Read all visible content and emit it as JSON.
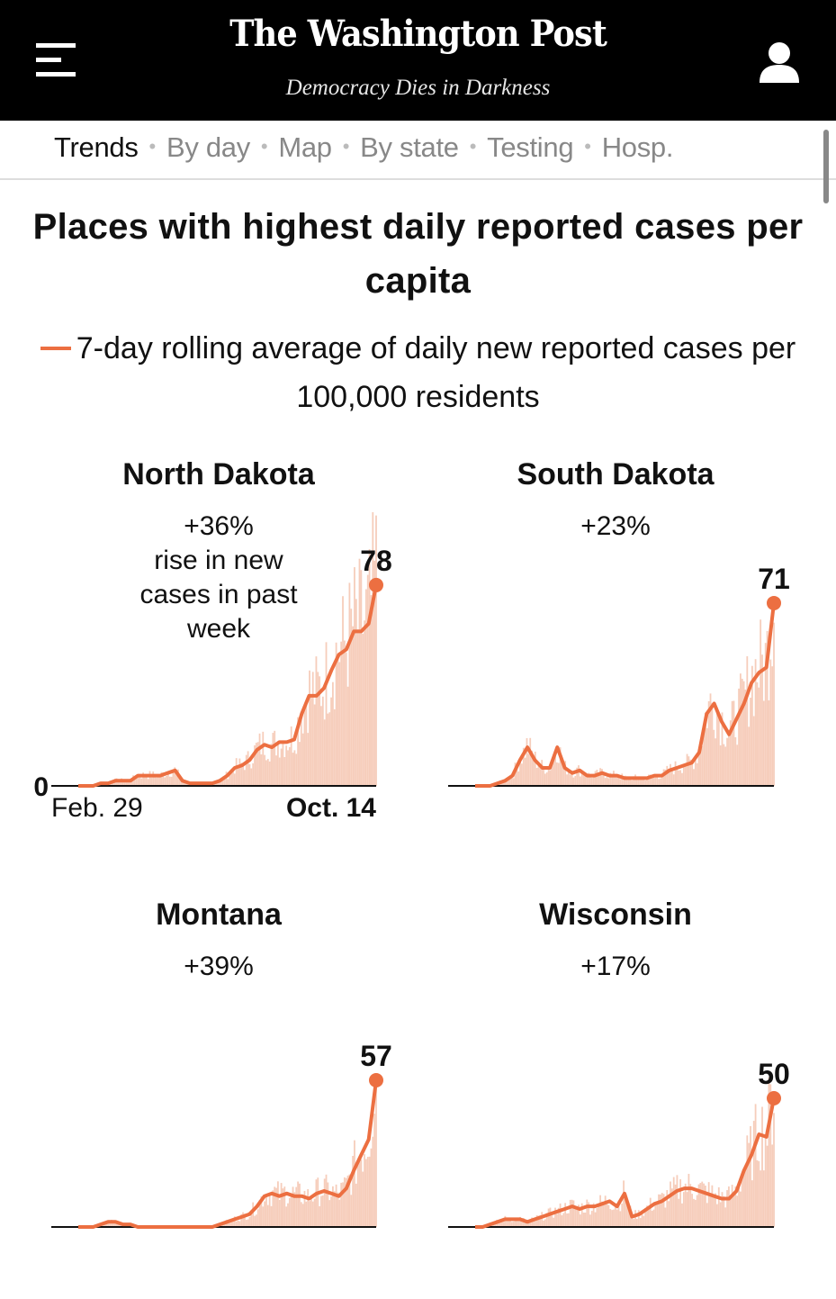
{
  "header": {
    "logo": "The Washington Post",
    "tagline": "Democracy Dies in Darkness",
    "menu_icon": "hamburger-menu-icon",
    "user_icon": "user-account-icon"
  },
  "nav": {
    "items": [
      {
        "label": "Trends",
        "active": true
      },
      {
        "label": "By day",
        "active": false
      },
      {
        "label": "Map",
        "active": false
      },
      {
        "label": "By state",
        "active": false
      },
      {
        "label": "Testing",
        "active": false
      },
      {
        "label": "Hosp.",
        "active": false
      }
    ]
  },
  "colors": {
    "accent": "#ec6f41",
    "bar": "#f6cdbb",
    "header_bg": "#000000"
  },
  "chart_data": {
    "type": "line",
    "title": "Places with highest daily reported cases per capita",
    "legend": "7-day rolling average of daily new reported cases per 100,000 residents",
    "x_start_label": "Feb. 29",
    "x_end_label": "Oct. 14",
    "y_zero_label": "0",
    "ylim": [
      0,
      80
    ],
    "grid": false,
    "annotation": "rise in new cases in past week",
    "panels": [
      {
        "name": "North Dakota",
        "change": "+36%",
        "last_value": 78,
        "rolling_avg": [
          0,
          0,
          0,
          1,
          1,
          2,
          2,
          2,
          4,
          4,
          4,
          4,
          5,
          6,
          2,
          1,
          1,
          1,
          1,
          2,
          4,
          7,
          8,
          10,
          14,
          16,
          15,
          17,
          17,
          18,
          28,
          35,
          35,
          38,
          45,
          51,
          53,
          60,
          60,
          63,
          78
        ]
      },
      {
        "name": "South Dakota",
        "change": "+23%",
        "last_value": 71,
        "rolling_avg": [
          0,
          0,
          0,
          1,
          2,
          4,
          10,
          15,
          10,
          7,
          7,
          15,
          7,
          5,
          6,
          4,
          4,
          5,
          4,
          4,
          3,
          3,
          3,
          3,
          4,
          4,
          6,
          7,
          8,
          9,
          13,
          28,
          32,
          25,
          20,
          26,
          32,
          40,
          44,
          46,
          71
        ]
      },
      {
        "name": "Montana",
        "change": "+39%",
        "last_value": 57,
        "rolling_avg": [
          0,
          0,
          0,
          1,
          2,
          2,
          1,
          1,
          0,
          0,
          0,
          0,
          0,
          0,
          0,
          0,
          0,
          0,
          0,
          1,
          2,
          3,
          4,
          5,
          8,
          12,
          13,
          12,
          13,
          12,
          12,
          11,
          13,
          14,
          13,
          12,
          15,
          22,
          28,
          34,
          57
        ]
      },
      {
        "name": "Wisconsin",
        "change": "+17%",
        "last_value": 50,
        "rolling_avg": [
          0,
          0,
          1,
          2,
          3,
          3,
          3,
          2,
          3,
          4,
          5,
          6,
          7,
          8,
          7,
          8,
          8,
          9,
          10,
          8,
          13,
          4,
          5,
          7,
          9,
          10,
          12,
          14,
          15,
          15,
          14,
          13,
          12,
          11,
          11,
          14,
          22,
          28,
          36,
          35,
          50
        ]
      }
    ]
  }
}
